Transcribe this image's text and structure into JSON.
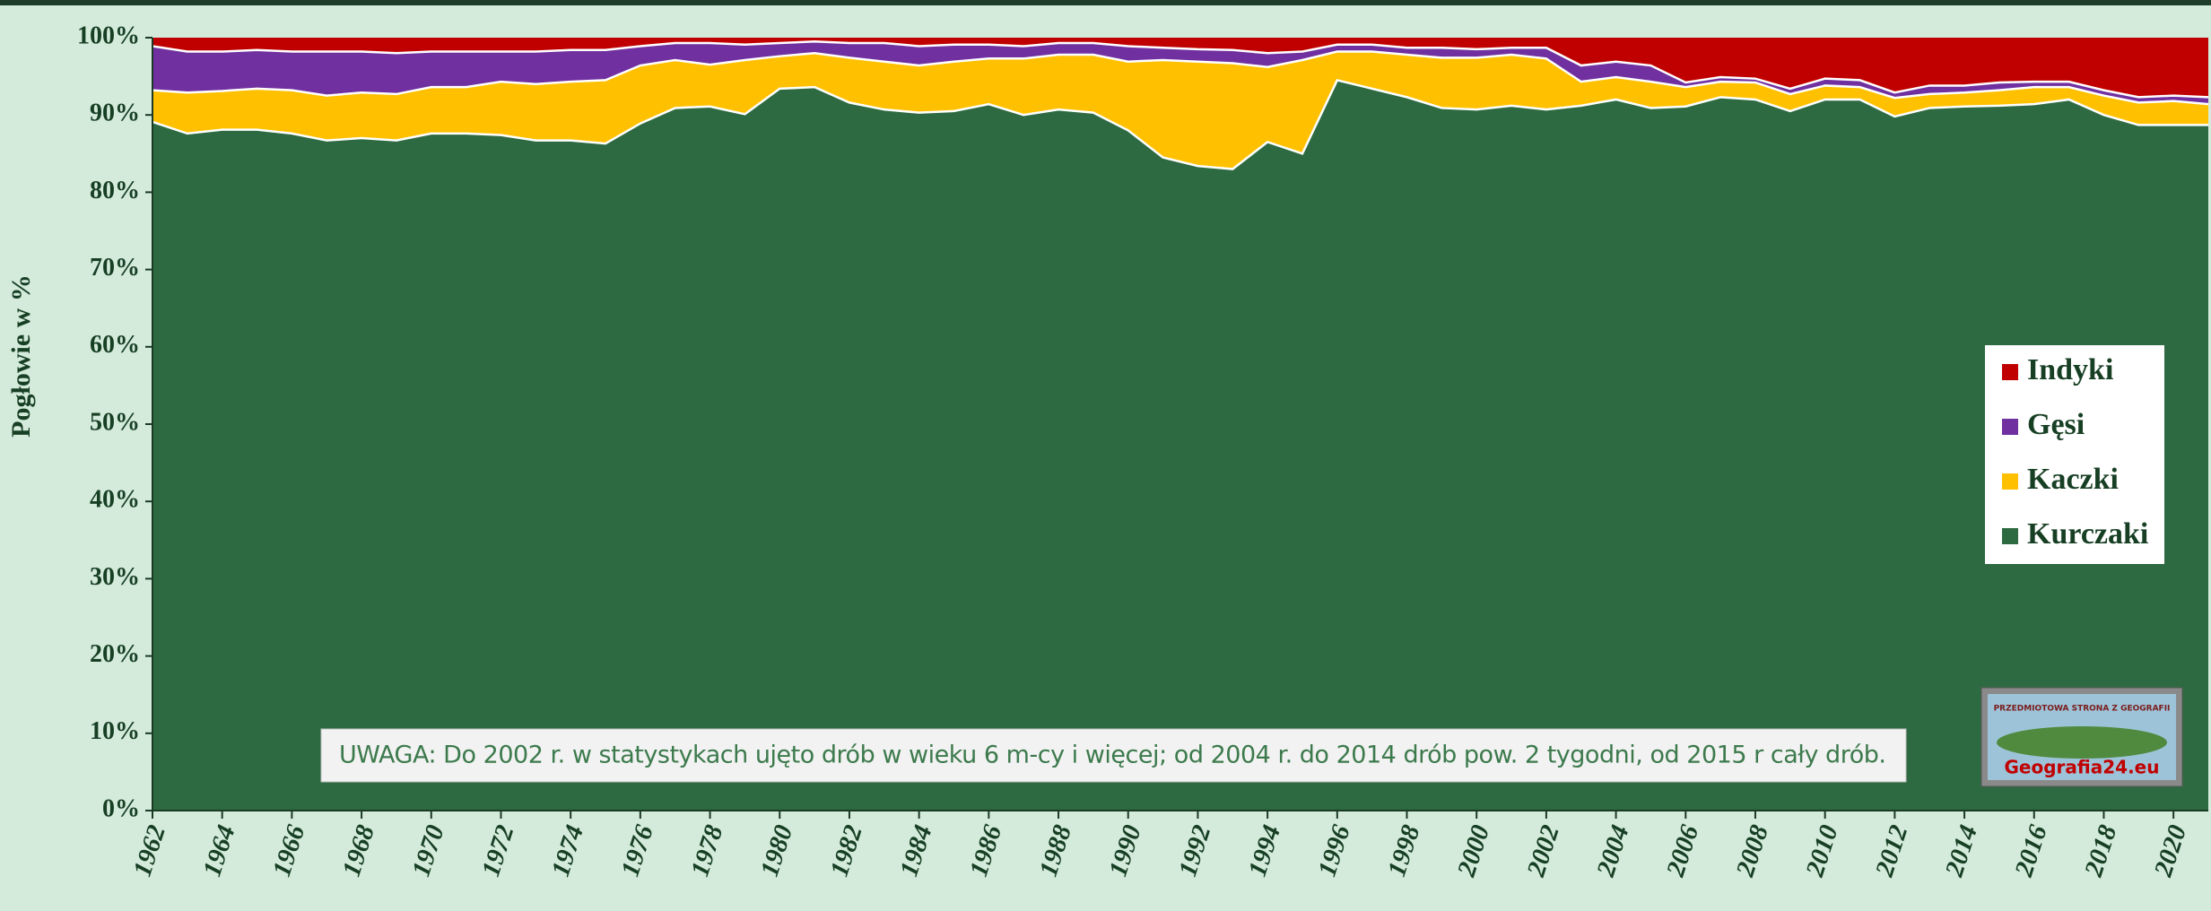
{
  "chart_data": {
    "type": "stacked_area",
    "y_label": "Pogłowie w %",
    "note": "UWAGA: Do 2002 r.  w statystykach ujęto drób w wieku 6 m-cy i więcej; od 2004 r. do 2014 drób pow. 2 tygodni, od 2015 r cały drób.",
    "logo": {
      "top": "PRZEDMIOTOWA STRONA Z GEOGRAFII",
      "bottom": "Geografia24.eu"
    },
    "x": [
      1962,
      1963,
      1964,
      1965,
      1966,
      1967,
      1968,
      1969,
      1970,
      1971,
      1972,
      1973,
      1974,
      1975,
      1976,
      1977,
      1978,
      1979,
      1980,
      1981,
      1982,
      1983,
      1984,
      1985,
      1986,
      1987,
      1988,
      1989,
      1990,
      1991,
      1992,
      1993,
      1994,
      1995,
      1996,
      1997,
      1998,
      1999,
      2000,
      2001,
      2002,
      2003,
      2004,
      2005,
      2006,
      2007,
      2008,
      2009,
      2010,
      2011,
      2012,
      2013,
      2014,
      2015,
      2016,
      2017,
      2018,
      2019,
      2020,
      2021
    ],
    "series": [
      {
        "name": "Kurczaki",
        "color": "#2e6a41",
        "values": [
          89.1,
          87.6,
          88.1,
          88.1,
          87.6,
          86.7,
          87.0,
          86.7,
          87.6,
          87.6,
          87.4,
          86.7,
          86.7,
          86.3,
          88.9,
          90.9,
          91.1,
          90.1,
          93.4,
          93.6,
          91.6,
          90.7,
          90.3,
          90.5,
          91.4,
          90.0,
          90.7,
          90.3,
          88.0,
          84.5,
          83.4,
          83.0,
          86.5,
          85.0,
          94.5,
          93.4,
          92.3,
          90.9,
          90.7,
          91.2,
          90.7,
          91.2,
          92.0,
          90.9,
          91.1,
          92.3,
          92.0,
          90.5,
          92.0,
          92.0,
          89.8,
          90.9,
          91.1,
          91.2,
          91.4,
          92.0,
          90.0,
          88.7,
          88.7,
          88.7
        ]
      },
      {
        "name": "Kaczki",
        "color": "#ffc000",
        "values": [
          4.1,
          5.3,
          5.0,
          5.3,
          5.6,
          5.8,
          5.9,
          6.0,
          6.0,
          6.0,
          6.9,
          7.3,
          7.6,
          8.2,
          7.5,
          6.2,
          5.4,
          7.0,
          4.2,
          4.4,
          5.8,
          6.2,
          6.1,
          6.4,
          5.9,
          7.3,
          7.1,
          7.5,
          8.9,
          12.6,
          13.5,
          13.7,
          9.7,
          12.1,
          3.7,
          4.8,
          5.5,
          6.5,
          6.7,
          6.6,
          6.6,
          3.1,
          2.9,
          3.4,
          2.5,
          2.0,
          2.2,
          2.2,
          1.8,
          1.6,
          2.4,
          1.8,
          1.8,
          2.0,
          2.2,
          1.6,
          2.5,
          2.9,
          3.1,
          2.7
        ]
      },
      {
        "name": "Gęsi",
        "color": "#7030a0",
        "values": [
          5.7,
          5.3,
          5.1,
          5.0,
          5.0,
          5.7,
          5.3,
          5.3,
          4.6,
          4.6,
          3.9,
          4.2,
          4.1,
          3.9,
          2.5,
          2.2,
          2.8,
          2.0,
          1.7,
          1.5,
          1.9,
          2.4,
          2.5,
          2.2,
          1.8,
          1.6,
          1.5,
          1.5,
          2.0,
          1.6,
          1.6,
          1.7,
          1.8,
          1.1,
          0.9,
          0.9,
          0.9,
          1.3,
          1.1,
          0.9,
          1.4,
          2.1,
          2.0,
          2.1,
          0.6,
          0.6,
          0.5,
          0.7,
          0.9,
          0.9,
          0.7,
          1.1,
          0.9,
          1.0,
          0.7,
          0.7,
          0.7,
          0.7,
          0.7,
          0.9
        ]
      },
      {
        "name": "Indyki",
        "color": "#c00000",
        "values": [
          1.1,
          1.8,
          1.8,
          1.6,
          1.8,
          1.8,
          1.8,
          2.0,
          1.8,
          1.8,
          1.8,
          1.8,
          1.6,
          1.6,
          1.1,
          0.7,
          0.7,
          0.9,
          0.7,
          0.5,
          0.7,
          0.7,
          1.1,
          0.9,
          0.9,
          1.1,
          0.7,
          0.7,
          1.1,
          1.3,
          1.5,
          1.6,
          2.0,
          1.8,
          0.9,
          0.9,
          1.3,
          1.3,
          1.5,
          1.3,
          1.3,
          3.6,
          3.1,
          3.6,
          5.8,
          5.1,
          5.3,
          6.6,
          5.3,
          5.5,
          7.1,
          6.2,
          6.2,
          5.8,
          5.7,
          5.7,
          6.8,
          7.7,
          7.5,
          7.7
        ]
      }
    ],
    "xlim": [
      1962,
      2021
    ],
    "xticks": [
      1962,
      1964,
      1966,
      1968,
      1970,
      1972,
      1974,
      1976,
      1978,
      1980,
      1982,
      1984,
      1986,
      1988,
      1990,
      1992,
      1994,
      1996,
      1998,
      2000,
      2002,
      2004,
      2006,
      2008,
      2010,
      2012,
      2014,
      2016,
      2018,
      2020
    ],
    "ylim": [
      0,
      100
    ],
    "yticks": [
      {
        "value": 0,
        "label": "0%"
      },
      {
        "value": 10,
        "label": "10%"
      },
      {
        "value": 20,
        "label": "20%"
      },
      {
        "value": 30,
        "label": "30%"
      },
      {
        "value": 40,
        "label": "40%"
      },
      {
        "value": 50,
        "label": "50%"
      },
      {
        "value": 60,
        "label": "60%"
      },
      {
        "value": 70,
        "label": "70%"
      },
      {
        "value": 80,
        "label": "80%"
      },
      {
        "value": 90,
        "label": "90%"
      },
      {
        "value": 100,
        "label": "100%"
      }
    ],
    "legend": "right"
  }
}
